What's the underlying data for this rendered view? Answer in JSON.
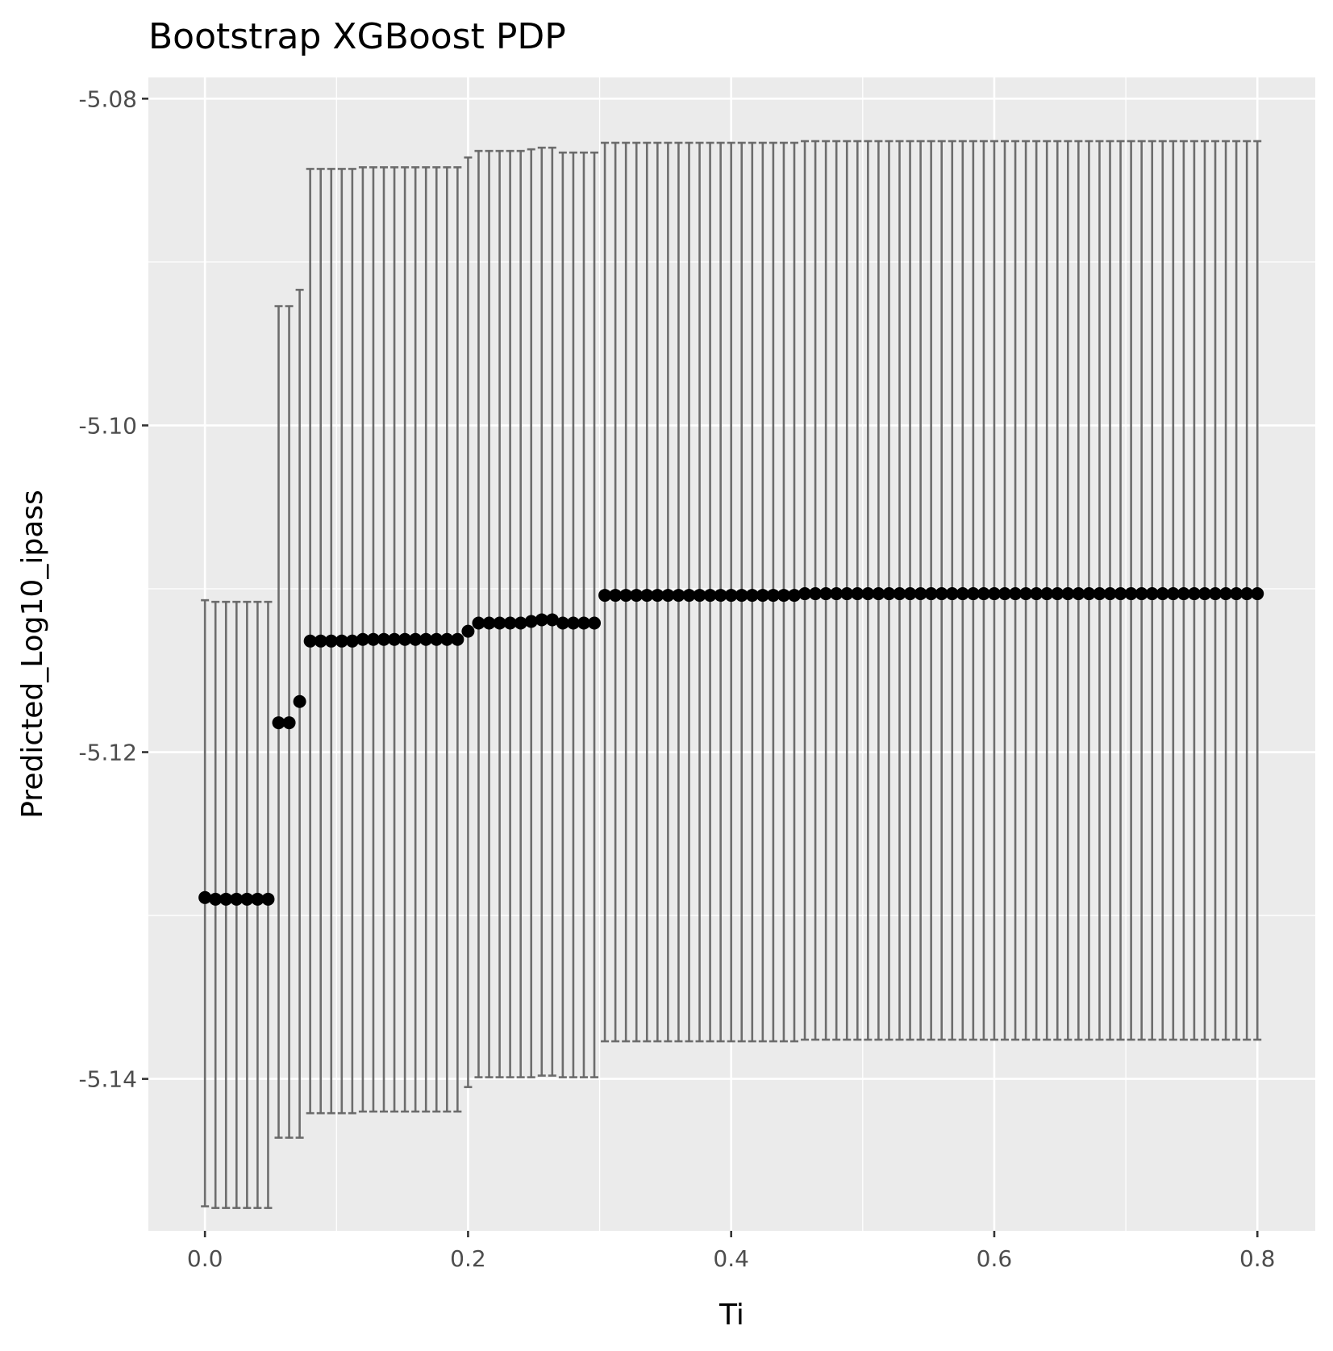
{
  "chart_data": {
    "type": "scatter",
    "title": "Bootstrap XGBoost PDP",
    "xlabel": "Ti",
    "ylabel": "Predicted_Log10_ipass",
    "xlim": [
      -0.043,
      0.844
    ],
    "ylim": [
      -5.1493,
      -5.0787
    ],
    "x_ticks": [
      0.0,
      0.2,
      0.4,
      0.6,
      0.8
    ],
    "x_tick_labels": [
      "0.0",
      "0.2",
      "0.4",
      "0.6",
      "0.8"
    ],
    "y_ticks": [
      -5.14,
      -5.12,
      -5.1,
      -5.08
    ],
    "y_tick_labels": [
      "-5.14",
      "-5.12",
      "-5.10",
      "-5.08"
    ],
    "grid": true,
    "legend": "none",
    "background": "#ebebeb",
    "grid_color": "#ffffff",
    "point_color": "#000000",
    "errorbar_color": "#666666",
    "x": [
      0.0,
      0.008,
      0.016,
      0.024,
      0.032,
      0.04,
      0.048,
      0.056,
      0.064,
      0.072,
      0.08,
      0.088,
      0.096,
      0.104,
      0.112,
      0.12,
      0.128,
      0.136,
      0.144,
      0.152,
      0.16,
      0.168,
      0.176,
      0.184,
      0.192,
      0.2,
      0.208,
      0.216,
      0.224,
      0.232,
      0.24,
      0.248,
      0.256,
      0.264,
      0.272,
      0.28,
      0.288,
      0.296,
      0.304,
      0.312,
      0.32,
      0.328,
      0.336,
      0.344,
      0.352,
      0.36,
      0.368,
      0.376,
      0.384,
      0.392,
      0.4,
      0.408,
      0.416,
      0.424,
      0.432,
      0.44,
      0.448,
      0.456,
      0.464,
      0.472,
      0.48,
      0.488,
      0.496,
      0.504,
      0.512,
      0.52,
      0.528,
      0.536,
      0.544,
      0.552,
      0.56,
      0.568,
      0.576,
      0.584,
      0.592,
      0.6,
      0.608,
      0.616,
      0.624,
      0.632,
      0.64,
      0.648,
      0.656,
      0.664,
      0.672,
      0.68,
      0.688,
      0.696,
      0.704,
      0.712,
      0.72,
      0.728,
      0.736,
      0.744,
      0.752,
      0.76,
      0.768,
      0.776,
      0.784,
      0.792,
      0.8
    ],
    "y": [
      -5.1289,
      -5.129,
      -5.129,
      -5.129,
      -5.129,
      -5.129,
      -5.129,
      -5.1182,
      -5.1182,
      -5.1169,
      -5.1132,
      -5.1132,
      -5.1132,
      -5.1132,
      -5.1132,
      -5.1131,
      -5.1131,
      -5.1131,
      -5.1131,
      -5.1131,
      -5.1131,
      -5.1131,
      -5.1131,
      -5.1131,
      -5.1131,
      -5.1126,
      -5.1121,
      -5.1121,
      -5.1121,
      -5.1121,
      -5.1121,
      -5.112,
      -5.1119,
      -5.1119,
      -5.1121,
      -5.1121,
      -5.1121,
      -5.1121,
      -5.1104,
      -5.1104,
      -5.1104,
      -5.1104,
      -5.1104,
      -5.1104,
      -5.1104,
      -5.1104,
      -5.1104,
      -5.1104,
      -5.1104,
      -5.1104,
      -5.1104,
      -5.1104,
      -5.1104,
      -5.1104,
      -5.1104,
      -5.1104,
      -5.1104,
      -5.1103,
      -5.1103,
      -5.1103,
      -5.1103,
      -5.1103,
      -5.1103,
      -5.1103,
      -5.1103,
      -5.1103,
      -5.1103,
      -5.1103,
      -5.1103,
      -5.1103,
      -5.1103,
      -5.1103,
      -5.1103,
      -5.1103,
      -5.1103,
      -5.1103,
      -5.1103,
      -5.1103,
      -5.1103,
      -5.1103,
      -5.1103,
      -5.1103,
      -5.1103,
      -5.1103,
      -5.1103,
      -5.1103,
      -5.1103,
      -5.1103,
      -5.1103,
      -5.1103,
      -5.1103,
      -5.1103,
      -5.1103,
      -5.1103,
      -5.1103,
      -5.1103,
      -5.1103,
      -5.1103,
      -5.1103,
      -5.1103,
      -5.1103
    ],
    "lower": [
      -5.1478,
      -5.1479,
      -5.1479,
      -5.1479,
      -5.1479,
      -5.1479,
      -5.1479,
      -5.1436,
      -5.1436,
      -5.1436,
      -5.1421,
      -5.1421,
      -5.1421,
      -5.1421,
      -5.1421,
      -5.142,
      -5.142,
      -5.142,
      -5.142,
      -5.142,
      -5.142,
      -5.142,
      -5.142,
      -5.142,
      -5.142,
      -5.1405,
      -5.1399,
      -5.1399,
      -5.1399,
      -5.1399,
      -5.1399,
      -5.1399,
      -5.1398,
      -5.1398,
      -5.1399,
      -5.1399,
      -5.1399,
      -5.1399,
      -5.1377,
      -5.1377,
      -5.1377,
      -5.1377,
      -5.1377,
      -5.1377,
      -5.1377,
      -5.1377,
      -5.1377,
      -5.1377,
      -5.1377,
      -5.1377,
      -5.1377,
      -5.1377,
      -5.1377,
      -5.1377,
      -5.1377,
      -5.1377,
      -5.1377,
      -5.1376,
      -5.1376,
      -5.1376,
      -5.1376,
      -5.1376,
      -5.1376,
      -5.1376,
      -5.1376,
      -5.1376,
      -5.1376,
      -5.1376,
      -5.1376,
      -5.1376,
      -5.1376,
      -5.1376,
      -5.1376,
      -5.1376,
      -5.1376,
      -5.1376,
      -5.1376,
      -5.1376,
      -5.1376,
      -5.1376,
      -5.1376,
      -5.1376,
      -5.1376,
      -5.1376,
      -5.1376,
      -5.1376,
      -5.1376,
      -5.1376,
      -5.1376,
      -5.1376,
      -5.1376,
      -5.1376,
      -5.1376,
      -5.1376,
      -5.1376,
      -5.1376,
      -5.1376,
      -5.1376,
      -5.1376,
      -5.1376,
      -5.1376
    ],
    "upper": [
      -5.1107,
      -5.1108,
      -5.1108,
      -5.1108,
      -5.1108,
      -5.1108,
      -5.1108,
      -5.0927,
      -5.0927,
      -5.0917,
      -5.0843,
      -5.0843,
      -5.0843,
      -5.0843,
      -5.0843,
      -5.0842,
      -5.0842,
      -5.0842,
      -5.0842,
      -5.0842,
      -5.0842,
      -5.0842,
      -5.0842,
      -5.0842,
      -5.0842,
      -5.0836,
      -5.0832,
      -5.0832,
      -5.0832,
      -5.0832,
      -5.0832,
      -5.0831,
      -5.083,
      -5.083,
      -5.0833,
      -5.0833,
      -5.0833,
      -5.0833,
      -5.0827,
      -5.0827,
      -5.0827,
      -5.0827,
      -5.0827,
      -5.0827,
      -5.0827,
      -5.0827,
      -5.0827,
      -5.0827,
      -5.0827,
      -5.0827,
      -5.0827,
      -5.0827,
      -5.0827,
      -5.0827,
      -5.0827,
      -5.0827,
      -5.0827,
      -5.0826,
      -5.0826,
      -5.0826,
      -5.0826,
      -5.0826,
      -5.0826,
      -5.0826,
      -5.0826,
      -5.0826,
      -5.0826,
      -5.0826,
      -5.0826,
      -5.0826,
      -5.0826,
      -5.0826,
      -5.0826,
      -5.0826,
      -5.0826,
      -5.0826,
      -5.0826,
      -5.0826,
      -5.0826,
      -5.0826,
      -5.0826,
      -5.0826,
      -5.0826,
      -5.0826,
      -5.0826,
      -5.0826,
      -5.0826,
      -5.0826,
      -5.0826,
      -5.0826,
      -5.0826,
      -5.0826,
      -5.0826,
      -5.0826,
      -5.0826,
      -5.0826,
      -5.0826,
      -5.0826,
      -5.0826,
      -5.0826,
      -5.0826
    ]
  }
}
